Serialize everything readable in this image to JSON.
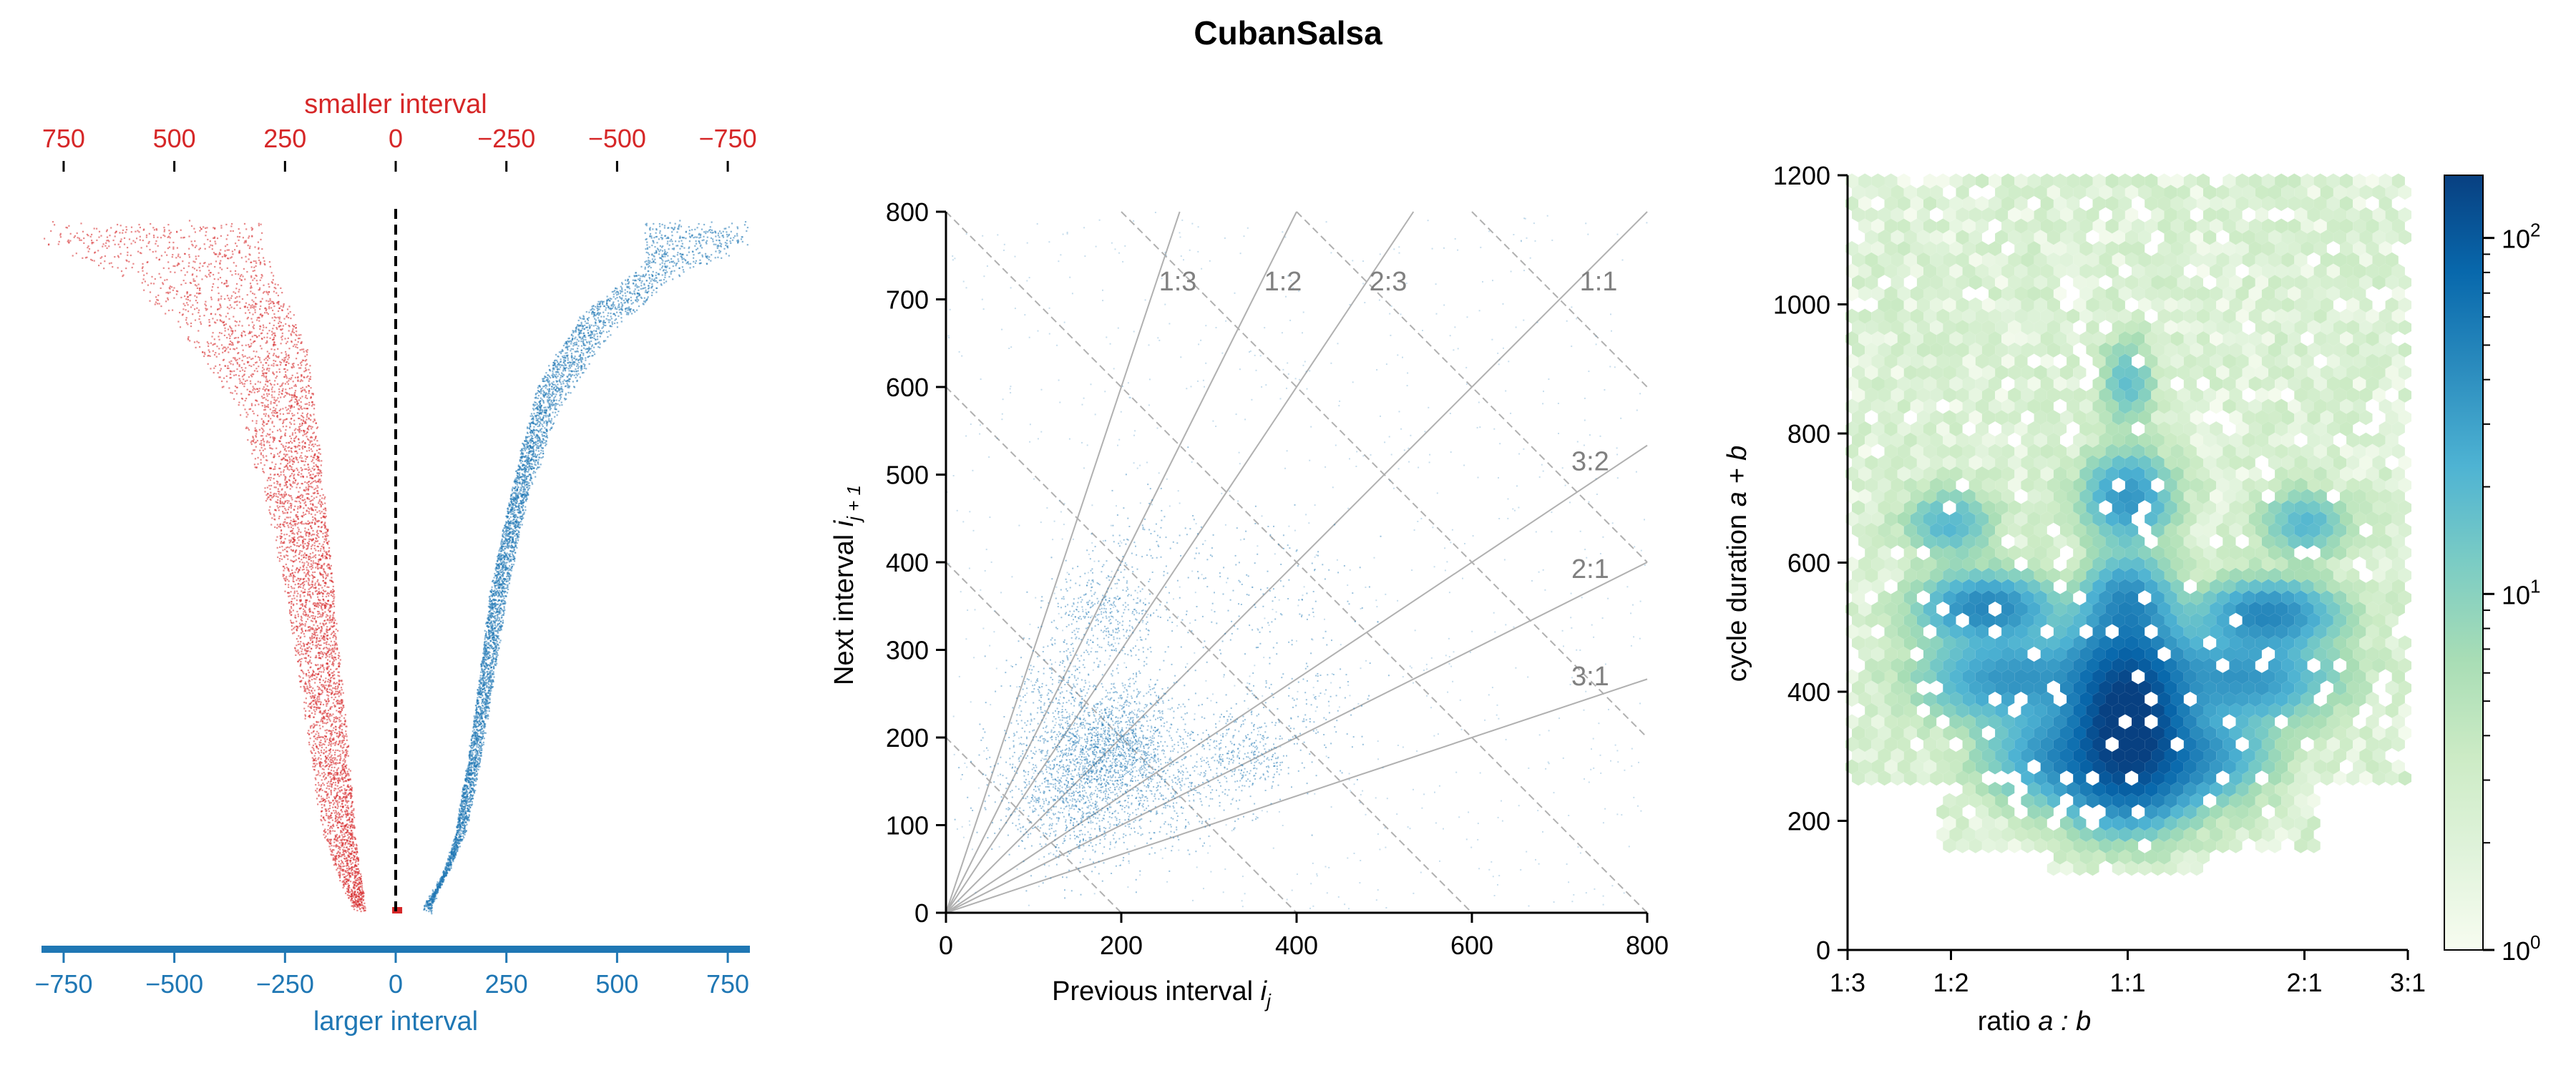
{
  "title": "CubanSalsa",
  "colors": {
    "red": "#d62728",
    "blue": "#1f77b4",
    "grid": "#b0b0b0",
    "ratio_text": "#808080"
  },
  "chart_data": [
    {
      "type": "scatter",
      "name": "interval-profile",
      "top_axis": {
        "label": "smaller interval",
        "ticks": [
          "750",
          "500",
          "250",
          "0",
          "−250",
          "−500",
          "−750"
        ],
        "values": [
          -750,
          -500,
          -250,
          0,
          250,
          500,
          750
        ],
        "color": "#d62728"
      },
      "bottom_axis": {
        "label": "larger interval",
        "ticks": [
          "−750",
          "−500",
          "−250",
          "0",
          "250",
          "500",
          "750"
        ],
        "values": [
          -750,
          -500,
          -250,
          0,
          250,
          500,
          750
        ],
        "color": "#1f77b4"
      },
      "xlim": [
        -800,
        800
      ],
      "red_envelope": {
        "outer": [
          [
            -800,
            0.05
          ],
          [
            -600,
            0.1
          ],
          [
            -480,
            0.18
          ],
          [
            -360,
            0.28
          ],
          [
            -300,
            0.4
          ],
          [
            -250,
            0.55
          ],
          [
            -200,
            0.75
          ],
          [
            -170,
            0.88
          ],
          [
            -130,
            0.95
          ],
          [
            -100,
            0.99
          ]
        ],
        "inner": [
          [
            -300,
            0.05
          ],
          [
            -200,
            0.2
          ],
          [
            -170,
            0.35
          ],
          [
            -140,
            0.55
          ],
          [
            -110,
            0.75
          ],
          [
            -90,
            0.9
          ],
          [
            -70,
            0.99
          ]
        ]
      },
      "blue_envelope": {
        "outer": [
          [
            800,
            0.05
          ],
          [
            620,
            0.1
          ],
          [
            480,
            0.18
          ],
          [
            370,
            0.28
          ],
          [
            300,
            0.4
          ],
          [
            250,
            0.55
          ],
          [
            200,
            0.75
          ],
          [
            160,
            0.88
          ],
          [
            110,
            0.95
          ],
          [
            60,
            0.99
          ]
        ],
        "inner": [
          [
            560,
            0.08
          ],
          [
            420,
            0.15
          ],
          [
            320,
            0.25
          ],
          [
            260,
            0.4
          ],
          [
            210,
            0.55
          ],
          [
            170,
            0.75
          ],
          [
            130,
            0.9
          ],
          [
            80,
            0.99
          ]
        ]
      }
    },
    {
      "type": "scatter",
      "name": "return-map",
      "xlabel_main": "Previous interval ",
      "xlabel_sub": "j",
      "xlabel_var": "i",
      "ylabel_main": "Next interval ",
      "ylabel_var": "i",
      "ylabel_sub": "j + 1",
      "xlim": [
        0,
        800
      ],
      "ylim": [
        0,
        800
      ],
      "xticks": [
        0,
        200,
        400,
        600,
        800
      ],
      "yticks": [
        0,
        100,
        200,
        300,
        400,
        500,
        600,
        700,
        800
      ],
      "ratio_lines": [
        {
          "label": "1:3",
          "slope": 3.0
        },
        {
          "label": "1:2",
          "slope": 2.0
        },
        {
          "label": "2:3",
          "slope": 1.5
        },
        {
          "label": "1:1",
          "slope": 1.0
        },
        {
          "label": "3:2",
          "slope": 0.6667
        },
        {
          "label": "2:1",
          "slope": 0.5
        },
        {
          "label": "3:1",
          "slope": 0.3333
        }
      ],
      "cycle_lines": [
        200,
        400,
        600,
        800,
        1000,
        1200,
        1400
      ],
      "clusters": [
        {
          "x": 150,
          "y": 150,
          "spread": 45,
          "n": 1400
        },
        {
          "x": 185,
          "y": 185,
          "spread": 30,
          "n": 700
        },
        {
          "x": 210,
          "y": 220,
          "spread": 35,
          "n": 400
        },
        {
          "x": 180,
          "y": 340,
          "spread": 30,
          "n": 420
        },
        {
          "x": 120,
          "y": 250,
          "spread": 30,
          "n": 220
        },
        {
          "x": 340,
          "y": 180,
          "spread": 30,
          "n": 380
        },
        {
          "x": 260,
          "y": 140,
          "spread": 30,
          "n": 260
        },
        {
          "x": 430,
          "y": 230,
          "spread": 30,
          "n": 80
        },
        {
          "x": 230,
          "y": 430,
          "spread": 30,
          "n": 80
        },
        {
          "x": 350,
          "y": 350,
          "spread": 60,
          "n": 200
        }
      ]
    },
    {
      "type": "heatmap",
      "name": "ratio-duration",
      "xlabel": "ratio ",
      "xlabel_expr": "a : b",
      "ylabel": "cycle duration ",
      "ylabel_expr": "a + b",
      "xticks": [
        "1:3",
        "1:2",
        "1:1",
        "2:1",
        "3:1"
      ],
      "xtick_values": [
        -1.0986,
        -0.6931,
        0.0,
        0.6931,
        1.0986
      ],
      "xlim": [
        -1.0986,
        1.0986
      ],
      "ylim": [
        0,
        1200
      ],
      "yticks": [
        0,
        200,
        400,
        600,
        800,
        1000,
        1200
      ],
      "colorbar": {
        "ticks": [
          {
            "base": "10",
            "exp": "0",
            "value": 1
          },
          {
            "base": "10",
            "exp": "1",
            "value": 10
          },
          {
            "base": "10",
            "exp": "2",
            "value": 100
          }
        ],
        "max": 150,
        "scale": "log",
        "colormap": "GnBu"
      },
      "blobs": [
        {
          "x": 0.0,
          "y": 360,
          "sx": 0.12,
          "sy": 50,
          "v": 140
        },
        {
          "x": 0.0,
          "y": 280,
          "sx": 0.15,
          "sy": 50,
          "v": 90
        },
        {
          "x": 0.0,
          "y": 440,
          "sx": 0.14,
          "sy": 50,
          "v": 60
        },
        {
          "x": 0.0,
          "y": 540,
          "sx": 0.1,
          "sy": 40,
          "v": 40
        },
        {
          "x": 0.0,
          "y": 700,
          "sx": 0.1,
          "sy": 40,
          "v": 35
        },
        {
          "x": 0.0,
          "y": 880,
          "sx": 0.06,
          "sy": 40,
          "v": 15
        },
        {
          "x": -0.55,
          "y": 530,
          "sx": 0.15,
          "sy": 30,
          "v": 45
        },
        {
          "x": 0.55,
          "y": 520,
          "sx": 0.15,
          "sy": 30,
          "v": 45
        },
        {
          "x": -0.45,
          "y": 420,
          "sx": 0.2,
          "sy": 40,
          "v": 35
        },
        {
          "x": 0.45,
          "y": 420,
          "sx": 0.2,
          "sy": 40,
          "v": 35
        },
        {
          "x": -0.7,
          "y": 660,
          "sx": 0.1,
          "sy": 30,
          "v": 18
        },
        {
          "x": 0.7,
          "y": 660,
          "sx": 0.1,
          "sy": 30,
          "v": 18
        },
        {
          "x": -0.3,
          "y": 300,
          "sx": 0.15,
          "sy": 40,
          "v": 30
        },
        {
          "x": 0.3,
          "y": 300,
          "sx": 0.15,
          "sy": 40,
          "v": 30
        }
      ]
    }
  ]
}
